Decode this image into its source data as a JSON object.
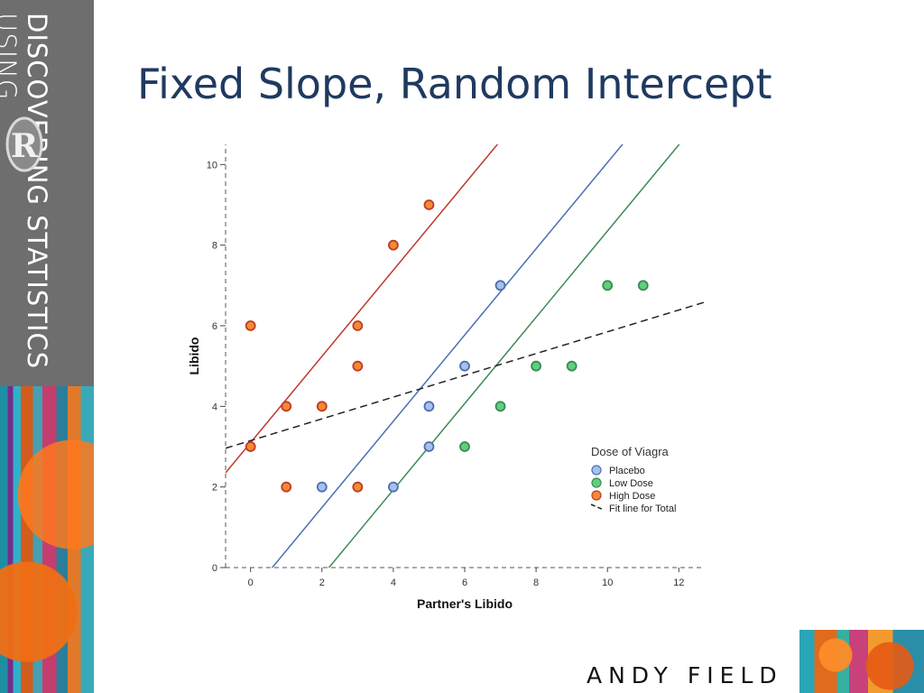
{
  "sidebar": {
    "brand_line1": "DISCOVERING STATISTICS",
    "brand_line2": "USING",
    "logo_letter": "R"
  },
  "slide": {
    "title": "Fixed Slope, Random Intercept",
    "author": "ANDY FIELD"
  },
  "chart_data": {
    "type": "scatter",
    "title": "",
    "xlabel": "Partner's Libido",
    "ylabel": "Libido",
    "xlim": [
      -0.7,
      12.7
    ],
    "ylim": [
      0,
      10.5
    ],
    "xticks": [
      0,
      2,
      4,
      6,
      8,
      10,
      12
    ],
    "yticks": [
      0,
      2,
      4,
      6,
      8,
      10
    ],
    "grid": false,
    "legend_title": "Dose of Viagra",
    "legend_position": "bottom-right",
    "series": [
      {
        "name": "Placebo",
        "color": "#4a6fb5",
        "fill": "#a9c0e8",
        "points": [
          [
            2,
            2
          ],
          [
            4,
            2
          ],
          [
            5,
            3
          ],
          [
            5,
            4
          ],
          [
            6,
            5
          ],
          [
            7,
            7
          ]
        ],
        "fit_line": {
          "slope": 1.07,
          "intercept": -0.65
        }
      },
      {
        "name": "Low Dose",
        "color": "#3a8a55",
        "fill": "#5fcf7d",
        "points": [
          [
            6,
            3
          ],
          [
            7,
            4
          ],
          [
            8,
            5
          ],
          [
            9,
            5
          ],
          [
            10,
            7
          ],
          [
            11,
            7
          ]
        ],
        "fit_line": {
          "slope": 1.07,
          "intercept": -2.35
        }
      },
      {
        "name": "High Dose",
        "color": "#c0392b",
        "fill": "#f28b30",
        "points": [
          [
            0,
            3
          ],
          [
            0,
            6
          ],
          [
            1,
            2
          ],
          [
            1,
            4
          ],
          [
            2,
            4
          ],
          [
            3,
            2
          ],
          [
            3,
            5
          ],
          [
            3,
            6
          ],
          [
            4,
            8
          ],
          [
            5,
            9
          ]
        ],
        "fit_line": {
          "slope": 1.07,
          "intercept": 3.1
        }
      }
    ],
    "total_fit": {
      "name": "Fit line for Total",
      "slope": 0.27,
      "intercept": 3.15,
      "color": "#222222",
      "style": "dashed"
    }
  }
}
